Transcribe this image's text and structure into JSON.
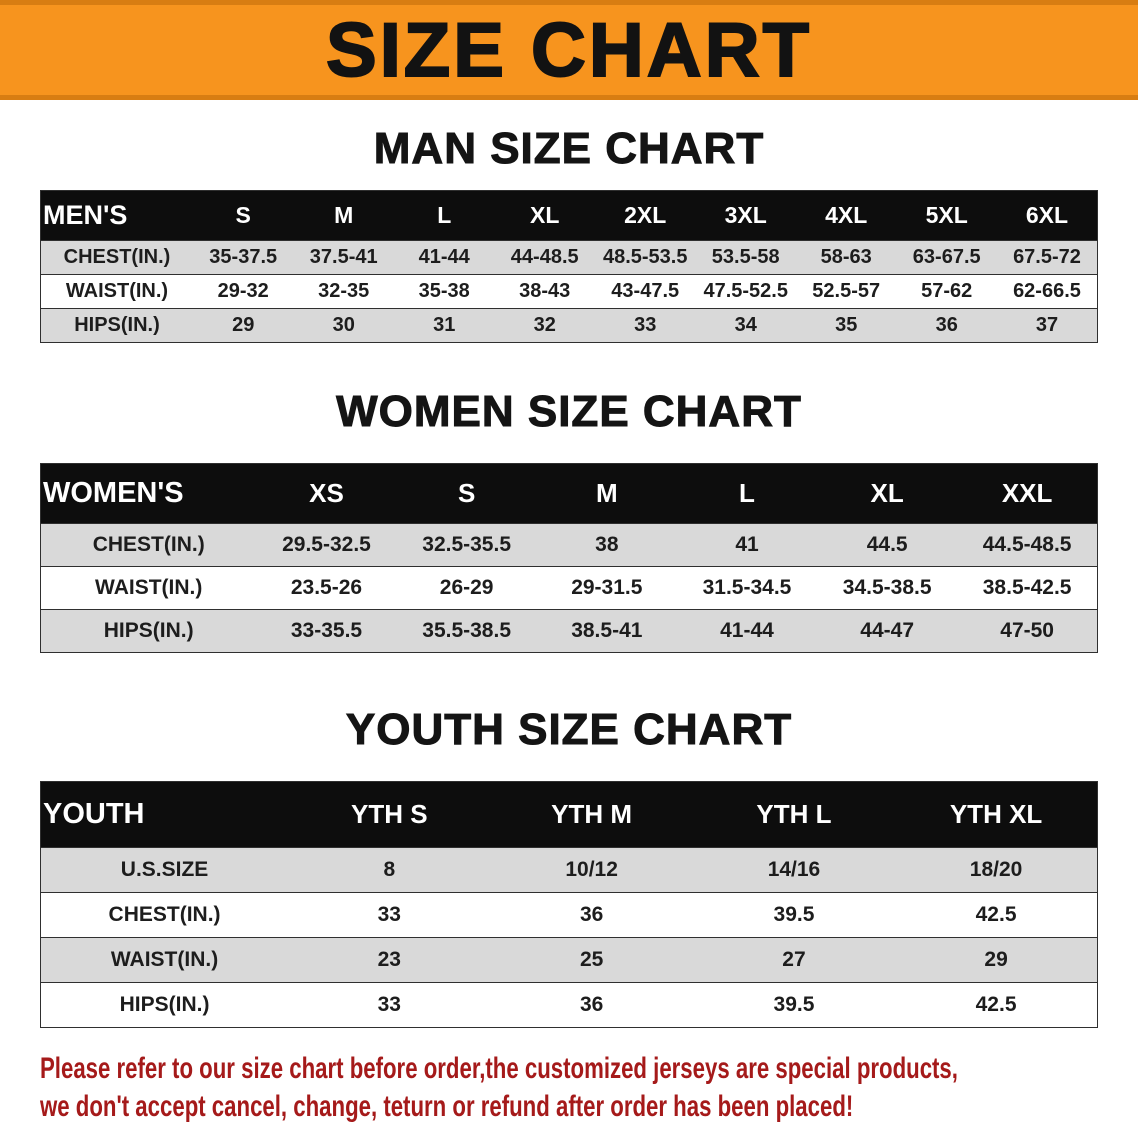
{
  "banner": {
    "title": "SIZE CHART"
  },
  "colors": {
    "banner_orange": "#f7941e",
    "banner_edge": "#d87d12",
    "table_header_bg": "#0d0d0d",
    "row_stripe": "#d9d9d9",
    "notice_red": "#a51a1a"
  },
  "sections": [
    {
      "heading": "MAN SIZE CHART",
      "table": {
        "header": [
          "MEN'S",
          "S",
          "M",
          "L",
          "XL",
          "2XL",
          "3XL",
          "4XL",
          "5XL",
          "6XL"
        ],
        "rows": [
          [
            "CHEST(IN.)",
            "35-37.5",
            "37.5-41",
            "41-44",
            "44-48.5",
            "48.5-53.5",
            "53.5-58",
            "58-63",
            "63-67.5",
            "67.5-72"
          ],
          [
            "WAIST(IN.)",
            "29-32",
            "32-35",
            "35-38",
            "38-43",
            "43-47.5",
            "47.5-52.5",
            "52.5-57",
            "57-62",
            "62-66.5"
          ],
          [
            "HIPS(IN.)",
            "29",
            "30",
            "31",
            "32",
            "33",
            "34",
            "35",
            "36",
            "37"
          ]
        ]
      }
    },
    {
      "heading": "WOMEN SIZE CHART",
      "table": {
        "header": [
          "WOMEN'S",
          "XS",
          "S",
          "M",
          "L",
          "XL",
          "XXL"
        ],
        "rows": [
          [
            "CHEST(IN.)",
            "29.5-32.5",
            "32.5-35.5",
            "38",
            "41",
            "44.5",
            "44.5-48.5"
          ],
          [
            "WAIST(IN.)",
            "23.5-26",
            "26-29",
            "29-31.5",
            "31.5-34.5",
            "34.5-38.5",
            "38.5-42.5"
          ],
          [
            "HIPS(IN.)",
            "33-35.5",
            "35.5-38.5",
            "38.5-41",
            "41-44",
            "44-47",
            "47-50"
          ]
        ]
      }
    },
    {
      "heading": "YOUTH SIZE CHART",
      "table": {
        "header": [
          "YOUTH",
          "YTH S",
          "YTH M",
          "YTH L",
          "YTH XL"
        ],
        "rows": [
          [
            "U.S.SIZE",
            "8",
            "10/12",
            "14/16",
            "18/20"
          ],
          [
            "CHEST(IN.)",
            "33",
            "36",
            "39.5",
            "42.5"
          ],
          [
            "WAIST(IN.)",
            "23",
            "25",
            "27",
            "29"
          ],
          [
            "HIPS(IN.)",
            "33",
            "36",
            "39.5",
            "42.5"
          ]
        ]
      }
    }
  ],
  "footer": {
    "line1": "Please refer to our size chart before order,the customized jerseys are special products,",
    "line2": "we don't accept cancel, change, teturn or refund after order has been placed!"
  }
}
